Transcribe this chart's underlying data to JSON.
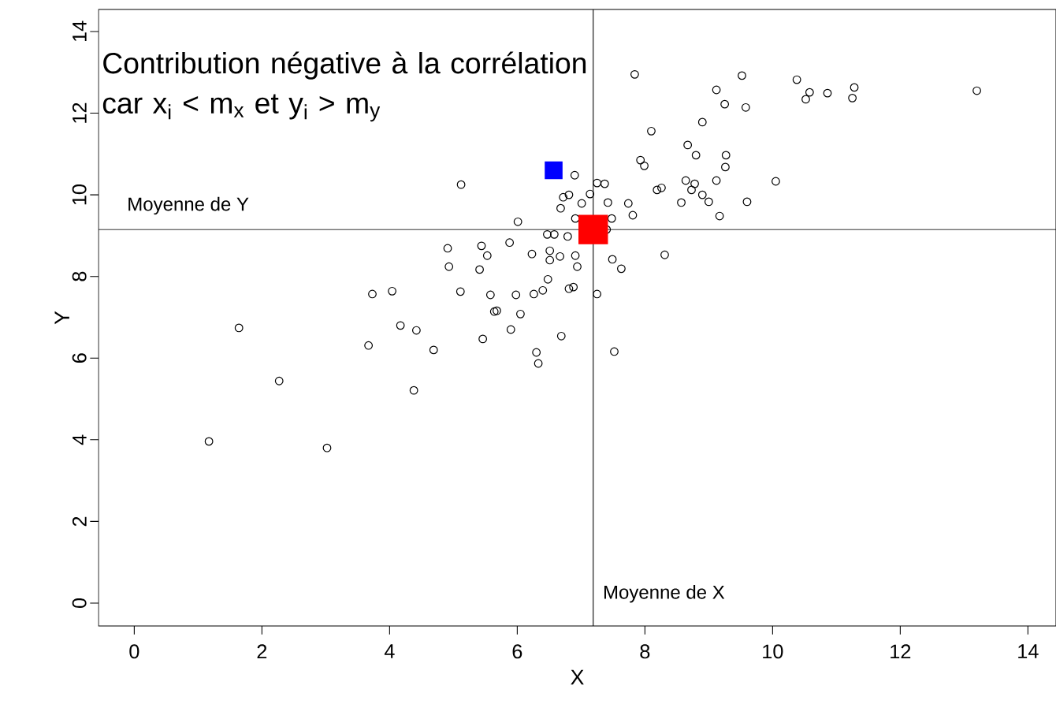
{
  "chart_data": {
    "type": "scatter",
    "xlabel": "X",
    "ylabel": "Y",
    "annotations": [
      "Contribution négative à la corrélation car x$_{i}$ < m$_{x}$ et y$_{i}$ > m$_{y}$"
    ],
    "xlim": [
      -0.56,
      14.44
    ],
    "ylim": [
      -0.56,
      14.54
    ],
    "xticks": [
      0,
      2,
      4,
      6,
      8,
      10,
      12,
      14
    ],
    "yticks": [
      0,
      2,
      4,
      6,
      8,
      10,
      12,
      14
    ],
    "grid": false,
    "ref_lines": [
      {
        "axis": "y",
        "value": 9.15,
        "label": "Moyenne de Y",
        "color": "#000000"
      },
      {
        "axis": "x",
        "value": 7.19,
        "label": "Moyenne de X",
        "color": "#000000"
      }
    ],
    "series": [
      {
        "color": "#000000",
        "marker": "circle",
        "x": [
          1.17,
          1.64,
          2.27,
          3.02,
          3.67,
          3.73,
          4.04,
          4.17,
          4.42,
          4.38,
          4.69,
          4.91,
          4.93,
          5.12,
          5.11,
          5.41,
          5.44,
          5.46,
          5.53,
          5.58,
          5.64,
          5.68,
          5.88,
          5.9,
          5.98,
          6.01,
          6.05,
          6.23,
          6.26,
          6.3,
          6.33,
          6.4,
          6.47,
          6.48,
          6.51,
          6.51,
          6.58,
          6.67,
          6.68,
          6.69,
          6.72,
          6.79,
          6.81,
          6.81,
          6.88,
          6.9,
          6.91,
          6.91,
          6.94,
          7.01,
          7.14,
          7.25,
          7.37,
          7.25,
          7.4,
          7.42,
          7.48,
          7.49,
          7.52,
          7.63,
          7.74,
          7.81,
          7.84,
          7.93,
          7.99,
          8.1,
          8.19,
          8.26,
          8.31,
          8.57,
          8.67,
          8.64,
          8.73,
          8.78,
          8.8,
          8.9,
          8.9,
          9.0,
          9.12,
          9.12,
          9.17,
          9.25,
          9.26,
          9.27,
          9.52,
          9.58,
          9.6,
          10.05,
          10.38,
          10.52,
          10.58,
          10.86,
          11.25,
          11.28,
          13.2
        ],
        "values": [
          3.96,
          6.74,
          5.44,
          3.8,
          6.31,
          7.57,
          7.64,
          6.8,
          6.68,
          5.21,
          6.2,
          8.69,
          8.24,
          10.25,
          7.63,
          8.17,
          8.75,
          6.47,
          8.51,
          7.55,
          7.14,
          7.16,
          8.83,
          6.7,
          7.55,
          9.34,
          7.08,
          8.55,
          7.57,
          6.14,
          5.87,
          7.66,
          9.03,
          7.93,
          8.63,
          8.4,
          9.03,
          8.49,
          9.67,
          6.54,
          9.94,
          8.98,
          10.0,
          7.7,
          7.74,
          10.48,
          9.42,
          8.51,
          8.24,
          9.79,
          10.02,
          10.29,
          10.27,
          7.57,
          9.15,
          9.81,
          9.42,
          8.42,
          6.16,
          8.19,
          9.79,
          9.5,
          12.95,
          10.85,
          10.71,
          11.56,
          10.12,
          10.17,
          8.53,
          9.81,
          11.22,
          10.35,
          10.12,
          10.27,
          10.97,
          11.78,
          10.0,
          9.83,
          12.57,
          10.35,
          9.48,
          12.22,
          10.68,
          10.97,
          12.92,
          12.14,
          9.83,
          10.33,
          12.82,
          12.34,
          12.51,
          12.49,
          12.37,
          12.63,
          12.55
        ]
      },
      {
        "color": "#0000ff",
        "marker": "square",
        "x": [
          6.57
        ],
        "values": [
          10.6
        ]
      },
      {
        "color": "#ff0000",
        "marker": "square",
        "x": [
          7.19
        ],
        "values": [
          9.15
        ]
      }
    ]
  }
}
